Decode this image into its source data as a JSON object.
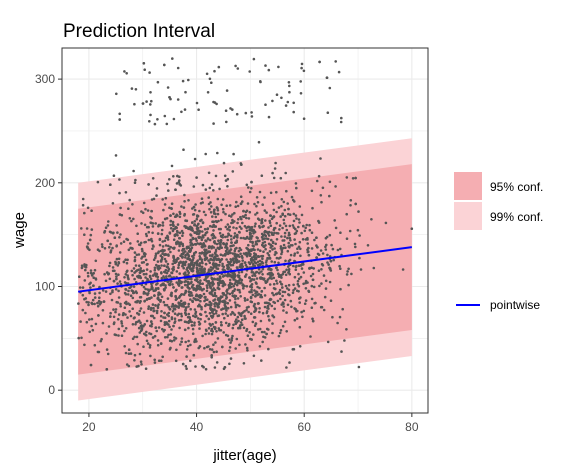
{
  "chart_data": {
    "type": "scatter",
    "title": "Prediction Interval",
    "xlabel": "jitter(age)",
    "ylabel": "wage",
    "xlim": [
      15,
      83
    ],
    "ylim": [
      -22,
      330
    ],
    "x_ticks": [
      20,
      40,
      60,
      80
    ],
    "y_ticks": [
      0,
      100,
      200,
      300
    ],
    "grid": true,
    "legend_placement": "right",
    "x_range_data": [
      18,
      80
    ],
    "fit_line": {
      "name": "pointwise",
      "x": [
        18,
        80
      ],
      "y": [
        95,
        138
      ],
      "color": "#0000ff"
    },
    "bands": [
      {
        "name": "99% conf.",
        "x": [
          18,
          80
        ],
        "lower": [
          -10,
          33
        ],
        "upper": [
          200,
          243
        ],
        "color": "#fbd3d6"
      },
      {
        "name": "95% conf.",
        "x": [
          18,
          80
        ],
        "lower": [
          15,
          58
        ],
        "upper": [
          175,
          218
        ],
        "color": "#f5aeb2"
      }
    ],
    "scatter": {
      "n_points": 3000,
      "point_color": "#555555",
      "description_note": "",
      "high_wage_cluster": {
        "y_min": 255,
        "y_max": 320,
        "x_min": 25,
        "x_max": 67
      }
    }
  },
  "legend": {
    "fill_items": [
      {
        "label": "95% conf.",
        "color": "#f5aeb2"
      },
      {
        "label": "99% conf.",
        "color": "#fbd3d6"
      }
    ],
    "line_items": [
      {
        "label": "pointwise",
        "color": "#0000ff"
      }
    ]
  }
}
